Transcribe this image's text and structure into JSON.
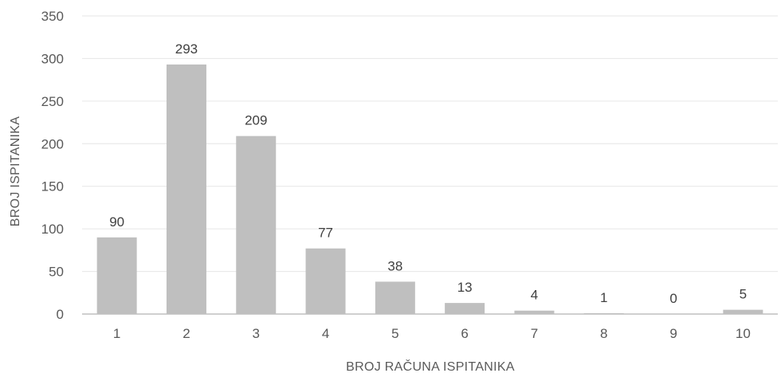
{
  "chart_data": {
    "type": "bar",
    "title": "",
    "xlabel": "BROJ RAČUNA ISPITANIKA",
    "ylabel": "BROJ ISPITANIKA",
    "categories": [
      "1",
      "2",
      "3",
      "4",
      "5",
      "6",
      "7",
      "8",
      "9",
      "10"
    ],
    "values": [
      90,
      293,
      209,
      77,
      38,
      13,
      4,
      1,
      0,
      5
    ],
    "data_labels": [
      "90",
      "293",
      "209",
      "77",
      "38",
      "13",
      "4",
      "1",
      "0",
      "5"
    ],
    "ylim": [
      0,
      350
    ],
    "yticks": [
      0,
      50,
      100,
      150,
      200,
      250,
      300,
      350
    ],
    "ytick_labels": [
      "0",
      "50",
      "100",
      "150",
      "200",
      "250",
      "300",
      "350"
    ],
    "grid": true,
    "legend": "none",
    "colors": {
      "bar": "#bfbfbf",
      "grid": "#e6e6e6",
      "axis": "#bfbfbf",
      "tick_text": "#595959",
      "label_text": "#404040"
    }
  }
}
